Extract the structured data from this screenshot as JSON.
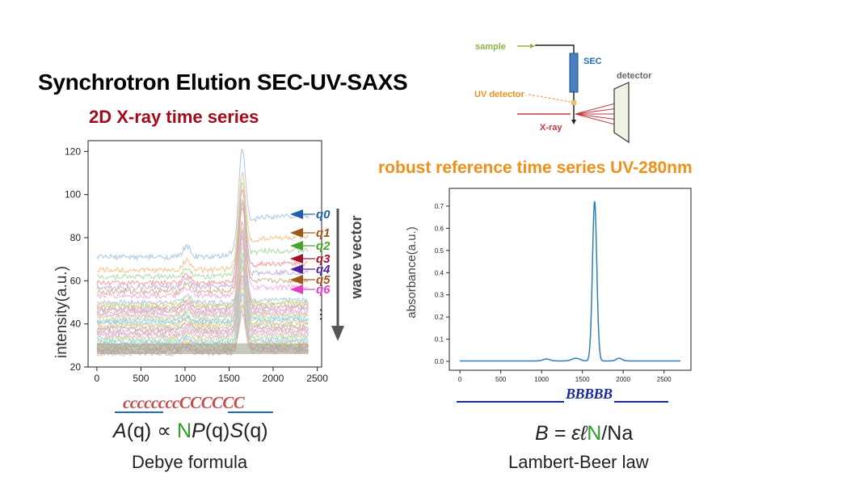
{
  "header": {
    "title": "Synchrotron Elution SEC-UV-SAXS",
    "left_subtitle": "2D X-ray time series",
    "right_subtitle": "robust reference time series UV-280nm"
  },
  "schematic": {
    "sample_label": "sample",
    "sec_label": "SEC",
    "uv_detector_label": "UV detector",
    "xray_label": "X-ray",
    "detector_label": "detector",
    "colors": {
      "sample": "#8ab34a",
      "sec": "#1f6fb5",
      "uv": "#f0901a",
      "xray": "#c0393b",
      "detector": "#666666"
    }
  },
  "left_chart": {
    "ylabel": "intensity(a.u.)",
    "xticks": [
      "0",
      "500",
      "1000",
      "1500",
      "2000",
      "2500"
    ],
    "yticks": [
      "20",
      "40",
      "60",
      "80",
      "100",
      "120"
    ],
    "wave_vector_label": "wave vector",
    "ellipsis": "⋮"
  },
  "q_markers": [
    {
      "label": "q0",
      "color": "#1f5fa8"
    },
    {
      "label": "q1",
      "color": "#a0551a"
    },
    {
      "label": "q2",
      "color": "#4aa02a"
    },
    {
      "label": "q3",
      "color": "#a5102a"
    },
    {
      "label": "q4",
      "color": "#5020a0"
    },
    {
      "label": "q5",
      "color": "#a0551a"
    },
    {
      "label": "q6",
      "color": "#e040c0"
    }
  ],
  "left_formula": {
    "decoration": "ccccccccCCCCCC",
    "A": "A",
    "q1": "(q) ∝ ",
    "N": "N",
    "P": "P",
    "q2": "(q)",
    "S": "S",
    "q3": "(q)",
    "caption": "Debye formula"
  },
  "right_chart": {
    "ylabel": "absorbance(a.u.)",
    "xticks": [
      "0",
      "500",
      "1000",
      "1500",
      "2000",
      "2500"
    ],
    "yticks": [
      "0.0",
      "0.1",
      "0.2",
      "0.3",
      "0.4",
      "0.5",
      "0.6",
      "0.7"
    ]
  },
  "right_formula": {
    "decoration": "BBBBB",
    "B": "B",
    "eq": " = εℓ",
    "N": "N",
    "tail": "/Na",
    "caption": "Lambert-Beer law"
  },
  "chart_data": [
    {
      "type": "line",
      "title": "2D X-ray time series",
      "xlabel": "",
      "ylabel": "intensity(a.u.)",
      "xlim": [
        0,
        2400
      ],
      "ylim": [
        20,
        125
      ],
      "peak_x": 1650,
      "series": [
        {
          "name": "q0",
          "baseline": 71,
          "peak": 121,
          "end": 90,
          "color": "#a8c8e8"
        },
        {
          "name": "q1",
          "baseline": 65,
          "peak": 110,
          "end": 80,
          "color": "#f5c48a"
        },
        {
          "name": "q2",
          "baseline": 62,
          "peak": 106,
          "end": 74,
          "color": "#a8e0a0"
        },
        {
          "name": "q3",
          "baseline": 59,
          "peak": 102,
          "end": 68,
          "color": "#f0a0a0"
        },
        {
          "name": "q4",
          "baseline": 57,
          "peak": 98,
          "end": 64,
          "color": "#c8b0e0"
        },
        {
          "name": "q5",
          "baseline": 55,
          "peak": 96,
          "end": 60,
          "color": "#d0b090"
        },
        {
          "name": "q6",
          "baseline": 53,
          "peak": 94,
          "end": 57,
          "color": "#f5b0e0"
        }
      ]
    },
    {
      "type": "line",
      "title": "robust reference time series UV-280nm",
      "xlabel": "",
      "ylabel": "absorbance(a.u.)",
      "xlim": [
        0,
        2700
      ],
      "ylim": [
        0,
        0.75
      ],
      "peak_x": 1650,
      "peak_y": 0.72
    }
  ]
}
